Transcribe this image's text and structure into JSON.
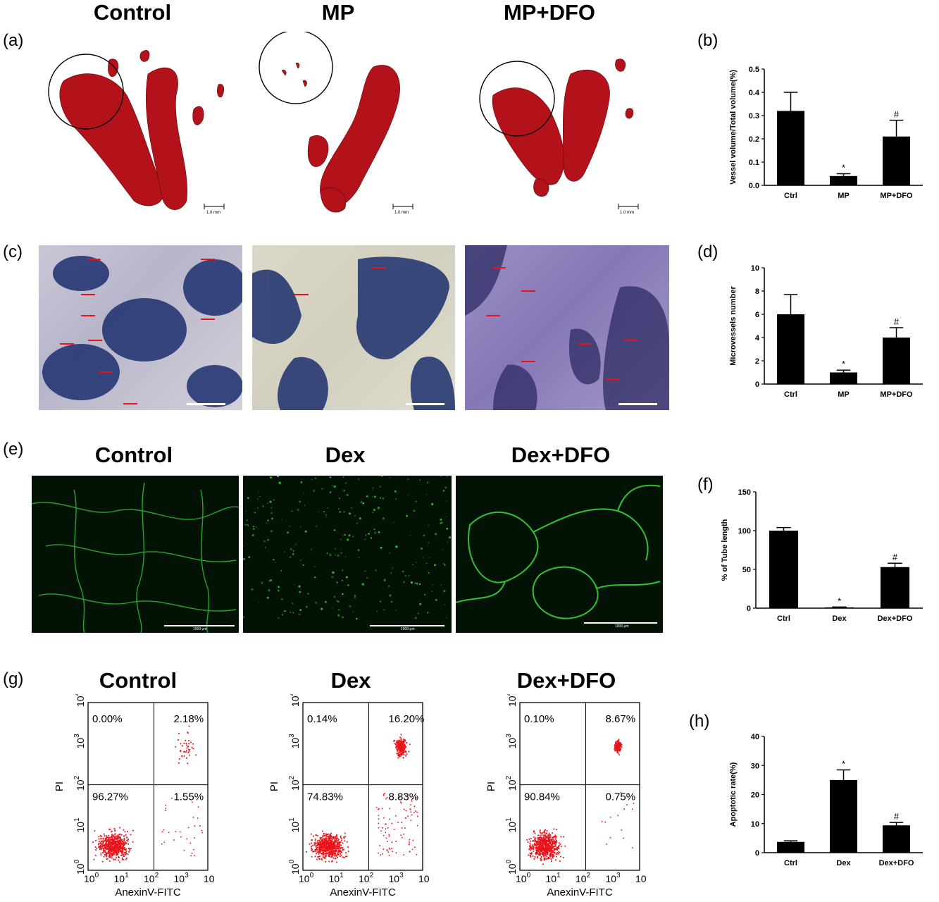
{
  "panel_labels": {
    "a": "(a)",
    "b": "(b)",
    "c": "(c)",
    "d": "(d)",
    "e": "(e)",
    "f": "(f)",
    "g": "(g)",
    "h": "(h)"
  },
  "row_a": {
    "titles": [
      "Control",
      "MP",
      "MP+DFO"
    ],
    "scale_label": "1.0 mm"
  },
  "row_e": {
    "titles": [
      "Control",
      "Dex",
      "Dex+DFO"
    ],
    "scale_label": "1000 μm"
  },
  "row_g": {
    "titles": [
      "Control",
      "Dex",
      "Dex+DFO"
    ],
    "xlabel": "AnexinV-FITC",
    "ylabel": "PI",
    "tick_base": "10",
    "tick_exps": [
      "0",
      "1",
      "2",
      "3",
      "4"
    ],
    "plots": [
      {
        "q_ul": "0.00%",
        "q_ur": "2.18%",
        "q_ll": "96.27%",
        "q_lr": "1.55%"
      },
      {
        "q_ul": "0.14%",
        "q_ur": "16.20%",
        "q_ll": "74.83%",
        "q_lr": "8.83%"
      },
      {
        "q_ul": "0.10%",
        "q_ur": "8.67%",
        "q_ll": "90.84%",
        "q_lr": "0.75%"
      }
    ]
  },
  "colors": {
    "bar": "#000000",
    "dots": "#e8141a",
    "vessels": "#b3121a",
    "fluor": "#37d43a",
    "ihc_arrow": "#e8141a"
  },
  "chart_data": [
    {
      "id": "b",
      "type": "bar",
      "categories": [
        "Ctrl",
        "MP",
        "MP+DFO"
      ],
      "values": [
        0.32,
        0.04,
        0.21
      ],
      "errors": [
        0.08,
        0.01,
        0.07
      ],
      "annotations": [
        "",
        "*",
        "#"
      ],
      "ylabel": "Vessel volume/Total volume(%)",
      "ylim": [
        0,
        0.5
      ],
      "yticks": [
        "0.0",
        "0.1",
        "0.2",
        "0.3",
        "0.4",
        "0.5"
      ]
    },
    {
      "id": "d",
      "type": "bar",
      "categories": [
        "Ctrl",
        "MP",
        "MP+DFO"
      ],
      "values": [
        6.0,
        1.0,
        4.0
      ],
      "errors": [
        1.7,
        0.2,
        0.85
      ],
      "annotations": [
        "",
        "*",
        "#"
      ],
      "ylabel": "Microvessels number",
      "ylim": [
        0,
        10
      ],
      "yticks": [
        "0",
        "2",
        "4",
        "6",
        "8",
        "10"
      ]
    },
    {
      "id": "f",
      "type": "bar",
      "categories": [
        "Ctrl",
        "Dex",
        "Dex+DFO"
      ],
      "values": [
        100,
        1,
        53
      ],
      "errors": [
        4,
        0.5,
        5
      ],
      "annotations": [
        "",
        "*",
        "#"
      ],
      "ylabel": "% of Tube length",
      "ylim": [
        0,
        150
      ],
      "yticks": [
        "0",
        "50",
        "100",
        "150"
      ]
    },
    {
      "id": "h",
      "type": "bar",
      "categories": [
        "Ctrl",
        "Dex",
        "Dex+DFO"
      ],
      "values": [
        3.7,
        25,
        9.4
      ],
      "errors": [
        0.4,
        3.5,
        1.0
      ],
      "annotations": [
        "",
        "*",
        "#"
      ],
      "ylabel": "Apoptotic rate(%)",
      "ylim": [
        0,
        40
      ],
      "yticks": [
        "0",
        "10",
        "20",
        "30",
        "40"
      ]
    }
  ]
}
